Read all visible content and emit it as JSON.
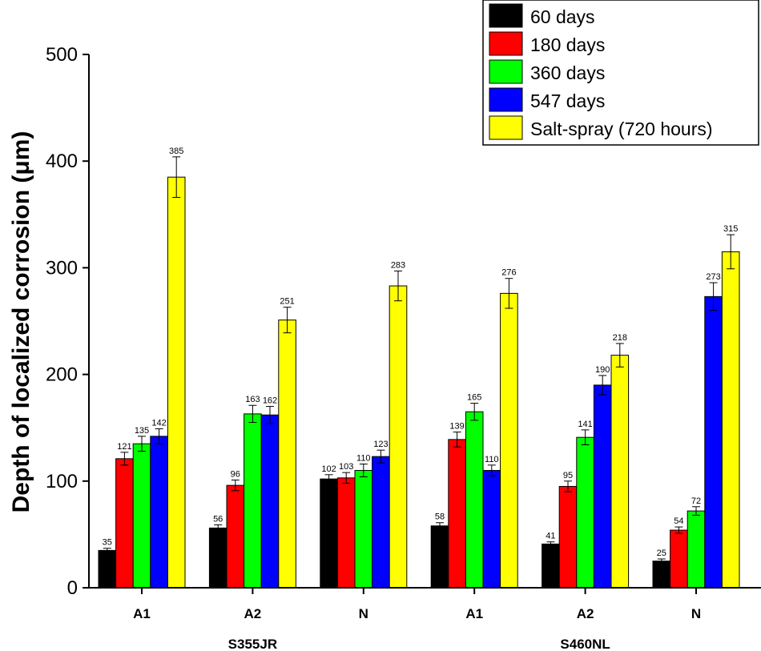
{
  "chart_data": {
    "type": "bar",
    "ylabel": "Depth of localized corrosion (μm)",
    "xlabel": "",
    "ylim": [
      0,
      500
    ],
    "yticks": [
      0,
      100,
      200,
      300,
      400,
      500
    ],
    "categories": [
      "A1",
      "A2",
      "N",
      "A1",
      "A2",
      "N"
    ],
    "groups": [
      {
        "label": "S355JR",
        "categories": [
          0,
          1,
          2
        ]
      },
      {
        "label": "S460NL",
        "categories": [
          3,
          4,
          5
        ]
      }
    ],
    "legend_position": "top-right",
    "series": [
      {
        "name": "60 days",
        "color": "#000000",
        "values": [
          35,
          56,
          102,
          58,
          41,
          25
        ],
        "errors": [
          2,
          3,
          4,
          3,
          2,
          2
        ]
      },
      {
        "name": "180 days",
        "color": "#ff0000",
        "values": [
          121,
          96,
          103,
          139,
          95,
          54
        ],
        "errors": [
          6,
          5,
          5,
          7,
          5,
          3
        ]
      },
      {
        "name": "360 days",
        "color": "#00ff00",
        "values": [
          135,
          163,
          110,
          165,
          141,
          72
        ],
        "errors": [
          7,
          8,
          6,
          8,
          7,
          4
        ]
      },
      {
        "name": "547 days",
        "color": "#0000ff",
        "values": [
          142,
          162,
          123,
          110,
          190,
          273
        ],
        "errors": [
          7,
          8,
          6,
          5,
          9,
          13
        ]
      },
      {
        "name": "Salt-spray (720 hours)",
        "color": "#ffff00",
        "values": [
          385,
          251,
          283,
          276,
          218,
          315
        ],
        "errors": [
          19,
          12,
          14,
          14,
          11,
          16
        ]
      }
    ]
  }
}
